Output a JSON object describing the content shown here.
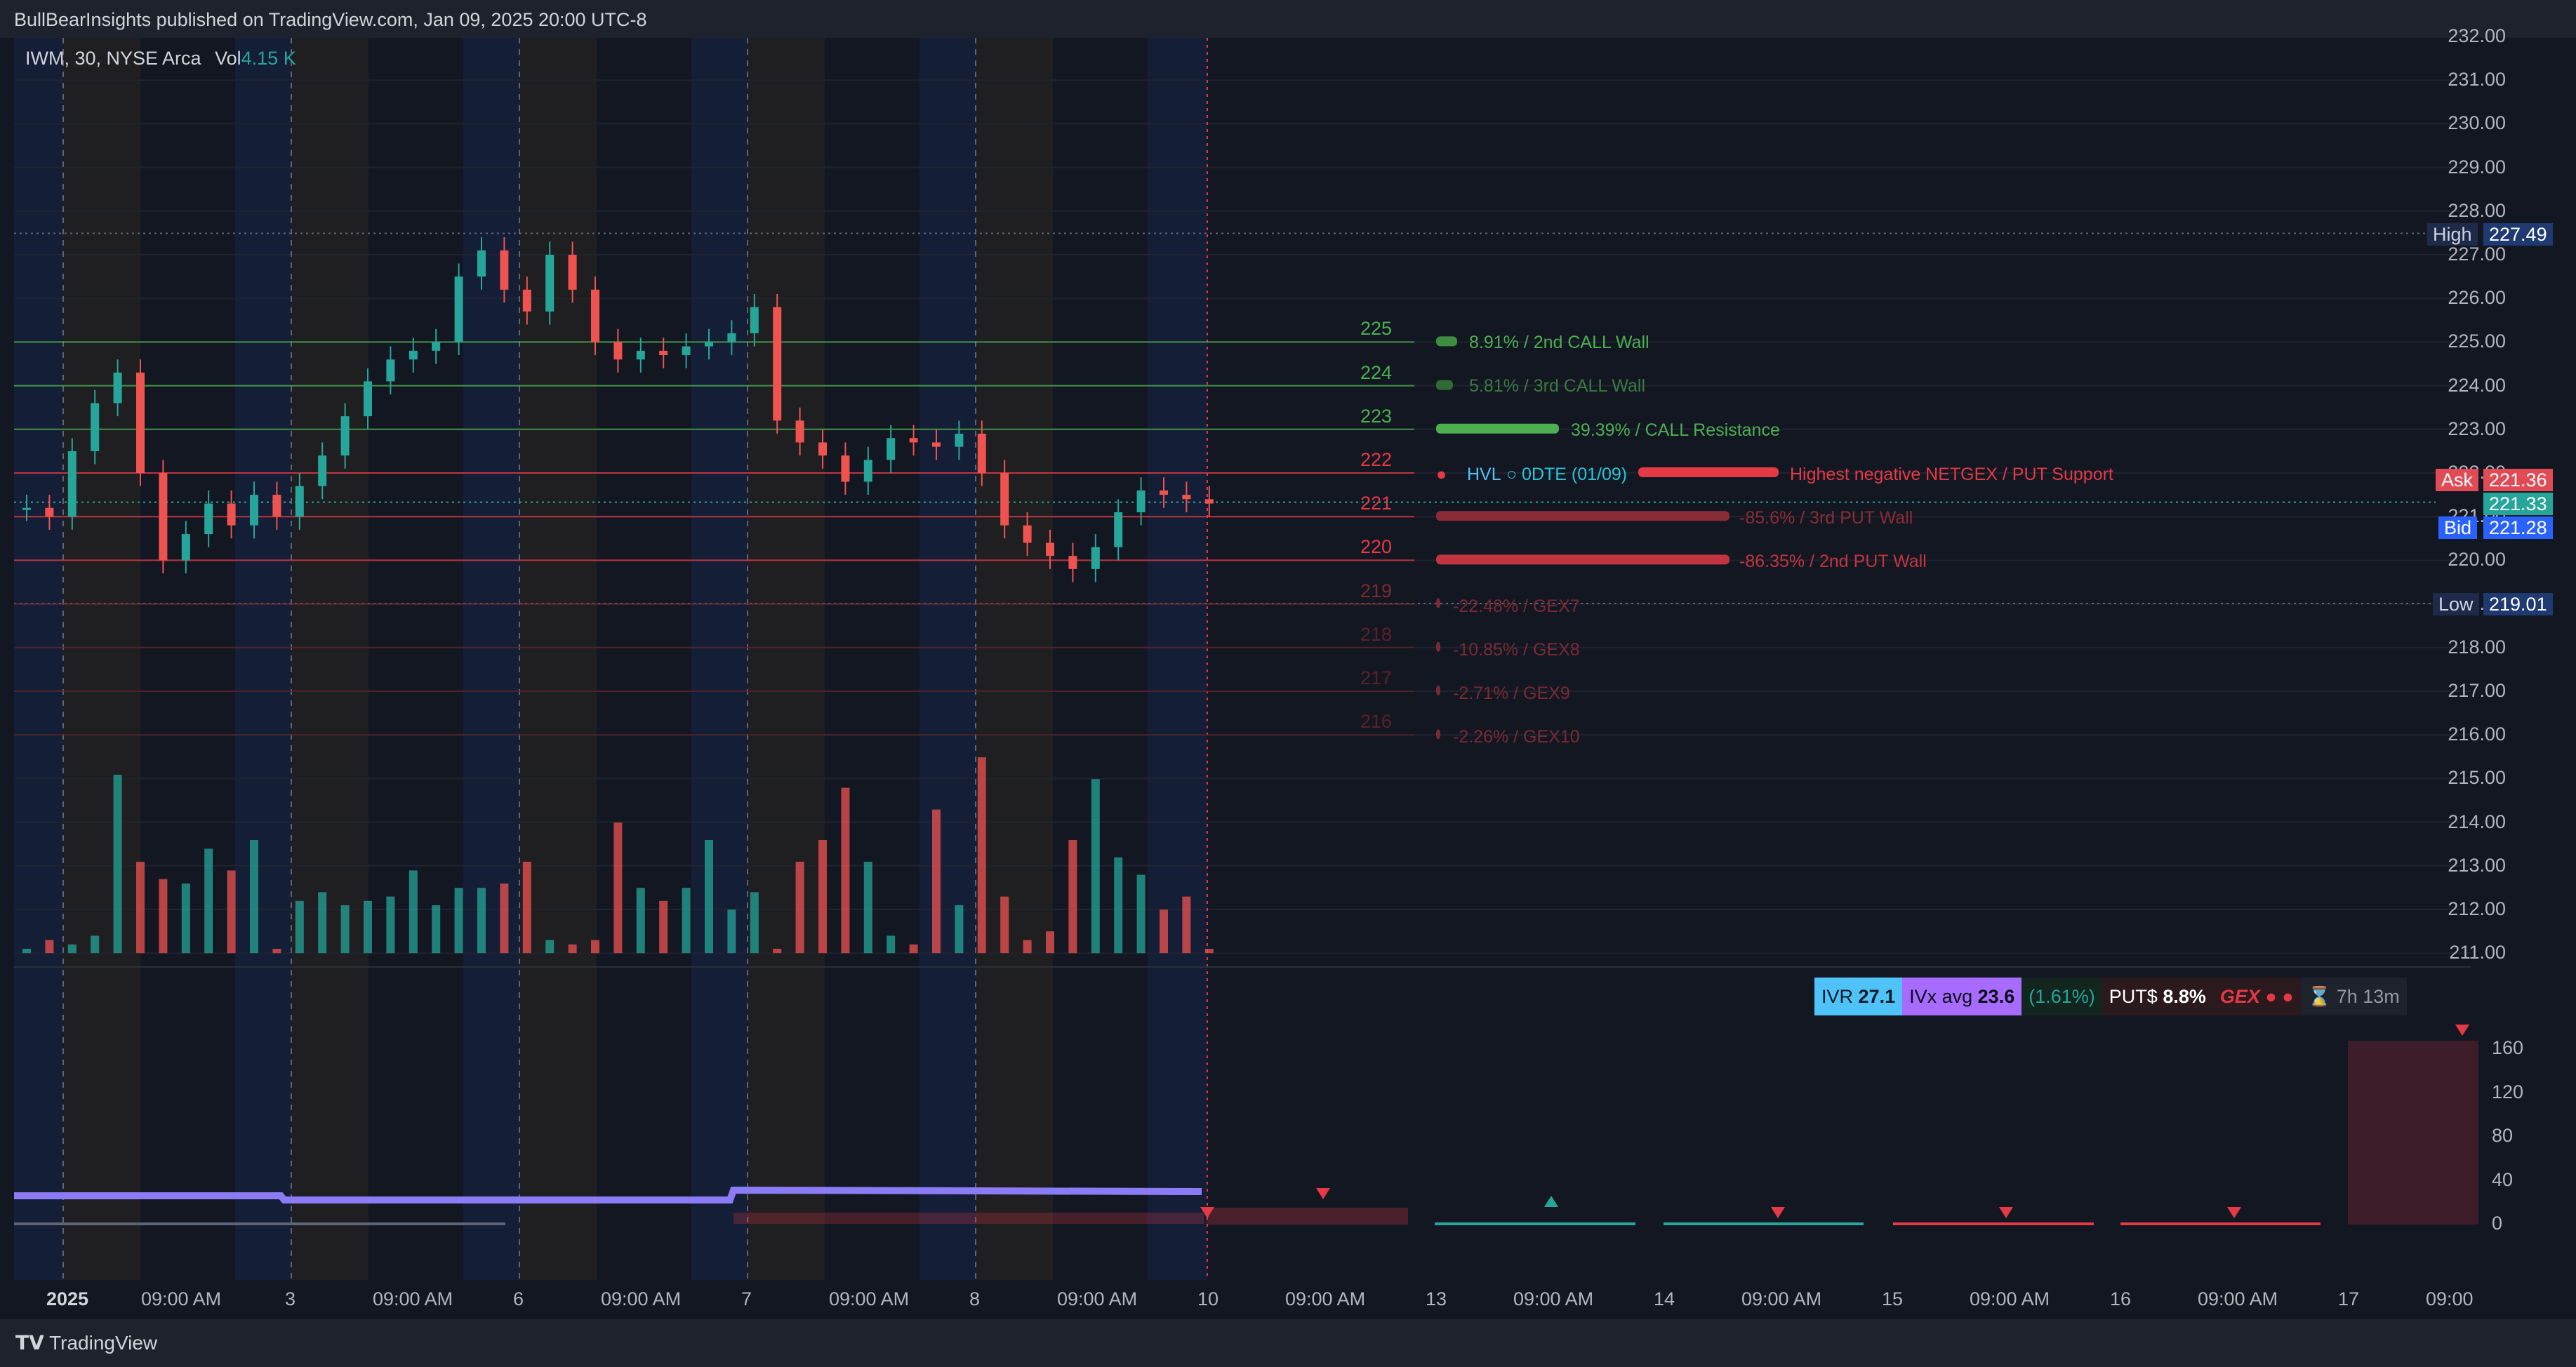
{
  "header": {
    "publisher": "BullBearInsights published on TradingView.com, Jan 09, 2025 20:00 UTC-8"
  },
  "legend": {
    "symbol": "IWM, 30, NYSE Arca",
    "vol_label": "Vol",
    "vol_value": "4.15 K"
  },
  "price_axis": [
    "232.00",
    "231.00",
    "230.00",
    "229.00",
    "228.00",
    "227.00",
    "226.00",
    "225.00",
    "224.00",
    "223.00",
    "222.00",
    "221.00",
    "220.00",
    "219.00",
    "218.00",
    "217.00",
    "216.00",
    "215.00",
    "214.00",
    "213.00",
    "212.00",
    "211.00"
  ],
  "price_tags": {
    "high": {
      "label": "High",
      "value": "227.49"
    },
    "low": {
      "label": "Low",
      "value": "219.01"
    },
    "ask": {
      "label": "Ask",
      "value": "221.36"
    },
    "last": {
      "value": "221.33"
    },
    "bid": {
      "label": "Bid",
      "value": "221.28"
    }
  },
  "strikes": [
    "225",
    "224",
    "223",
    "222",
    "221",
    "220",
    "219",
    "218",
    "217",
    "216"
  ],
  "gex_levels": {
    "s225": "8.91% / 2nd CALL Wall",
    "s224": "5.81% / 3rd CALL Wall",
    "s223": "39.39% / CALL Resistance",
    "hvl": "HVL",
    "hvl_dte": "○ 0DTE (01/09)",
    "s222": "Highest negative NETGEX / PUT Support",
    "s221": "-85.6% / 3rd PUT Wall",
    "s220": "-86.35% / 2nd PUT Wall",
    "s219": "-22.48% / GEX7",
    "s218": "-10.85% / GEX8",
    "s217": "-2.71% / GEX9",
    "s216": "-2.26% / GEX10"
  },
  "stats": {
    "ivr_label": "IVR",
    "ivr_value": "27.1",
    "ivx_label": "IVx avg",
    "ivx_value": "23.6",
    "change": "(1.61%)",
    "put_label": "PUT$",
    "put_value": "8.8%",
    "gex_label": "GEX",
    "timer": "7h 13m"
  },
  "indicator_axis": [
    "160",
    "120",
    "80",
    "40",
    "0"
  ],
  "time_axis": [
    "2025",
    "09:00 AM",
    "3",
    "09:00 AM",
    "6",
    "09:00 AM",
    "7",
    "09:00 AM",
    "8",
    "09:00 AM",
    "10",
    "09:00 AM",
    "13",
    "09:00 AM",
    "14",
    "09:00 AM",
    "15",
    "09:00 AM",
    "16",
    "09:00 AM",
    "17",
    "09:00"
  ],
  "footer": {
    "brand": "TradingView"
  },
  "colors": {
    "up": "#26a69a",
    "down": "#ef5350",
    "call": "#4caf50",
    "put": "#e53945",
    "ivr": "#4fc3f7",
    "ivx": "#b36bff",
    "background": "#131722"
  },
  "chart_data": {
    "type": "candlestick",
    "symbol": "IWM",
    "interval": "30",
    "ylim": [
      211,
      232
    ],
    "sessions": [
      "2025",
      "3",
      "6",
      "7",
      "8"
    ],
    "high": 227.49,
    "low": 219.01,
    "last": 221.33,
    "series": [
      {
        "values": [
          221.2,
          221.0,
          222.5,
          223.6,
          224.3,
          222.0,
          220.0,
          220.6,
          221.3,
          220.8,
          221.5,
          221.0,
          221.7,
          222.4,
          223.3,
          224.1,
          224.6,
          224.8,
          225.0,
          226.5,
          227.1,
          226.2,
          225.7,
          227.0,
          226.2,
          225.0,
          224.6,
          224.8,
          224.7,
          224.9,
          225.0,
          225.2,
          225.8,
          223.2,
          222.7,
          222.4,
          221.8,
          222.3,
          222.8,
          222.7,
          222.6,
          222.9,
          222.0,
          220.8,
          220.4,
          220.1,
          219.8,
          220.3,
          221.1,
          221.6,
          221.5,
          221.4,
          221.3
        ]
      }
    ],
    "volume": [
      0.1,
      0.3,
      0.2,
      0.4,
      4.1,
      2.1,
      1.7,
      1.6,
      2.4,
      1.9,
      2.6,
      0.1,
      1.2,
      1.4,
      1.1,
      1.2,
      1.3,
      1.9,
      1.1,
      1.5,
      1.5,
      1.6,
      2.1,
      0.3,
      0.2,
      0.3,
      3.0,
      1.5,
      1.2,
      1.5,
      2.6,
      1.0,
      1.4,
      0.1,
      2.1,
      2.6,
      3.8,
      2.1,
      0.4,
      0.2,
      3.3,
      1.1,
      4.5,
      1.3,
      0.3,
      0.5,
      2.6,
      4.0,
      2.2,
      1.8,
      1.0,
      1.3,
      0.1
    ]
  }
}
